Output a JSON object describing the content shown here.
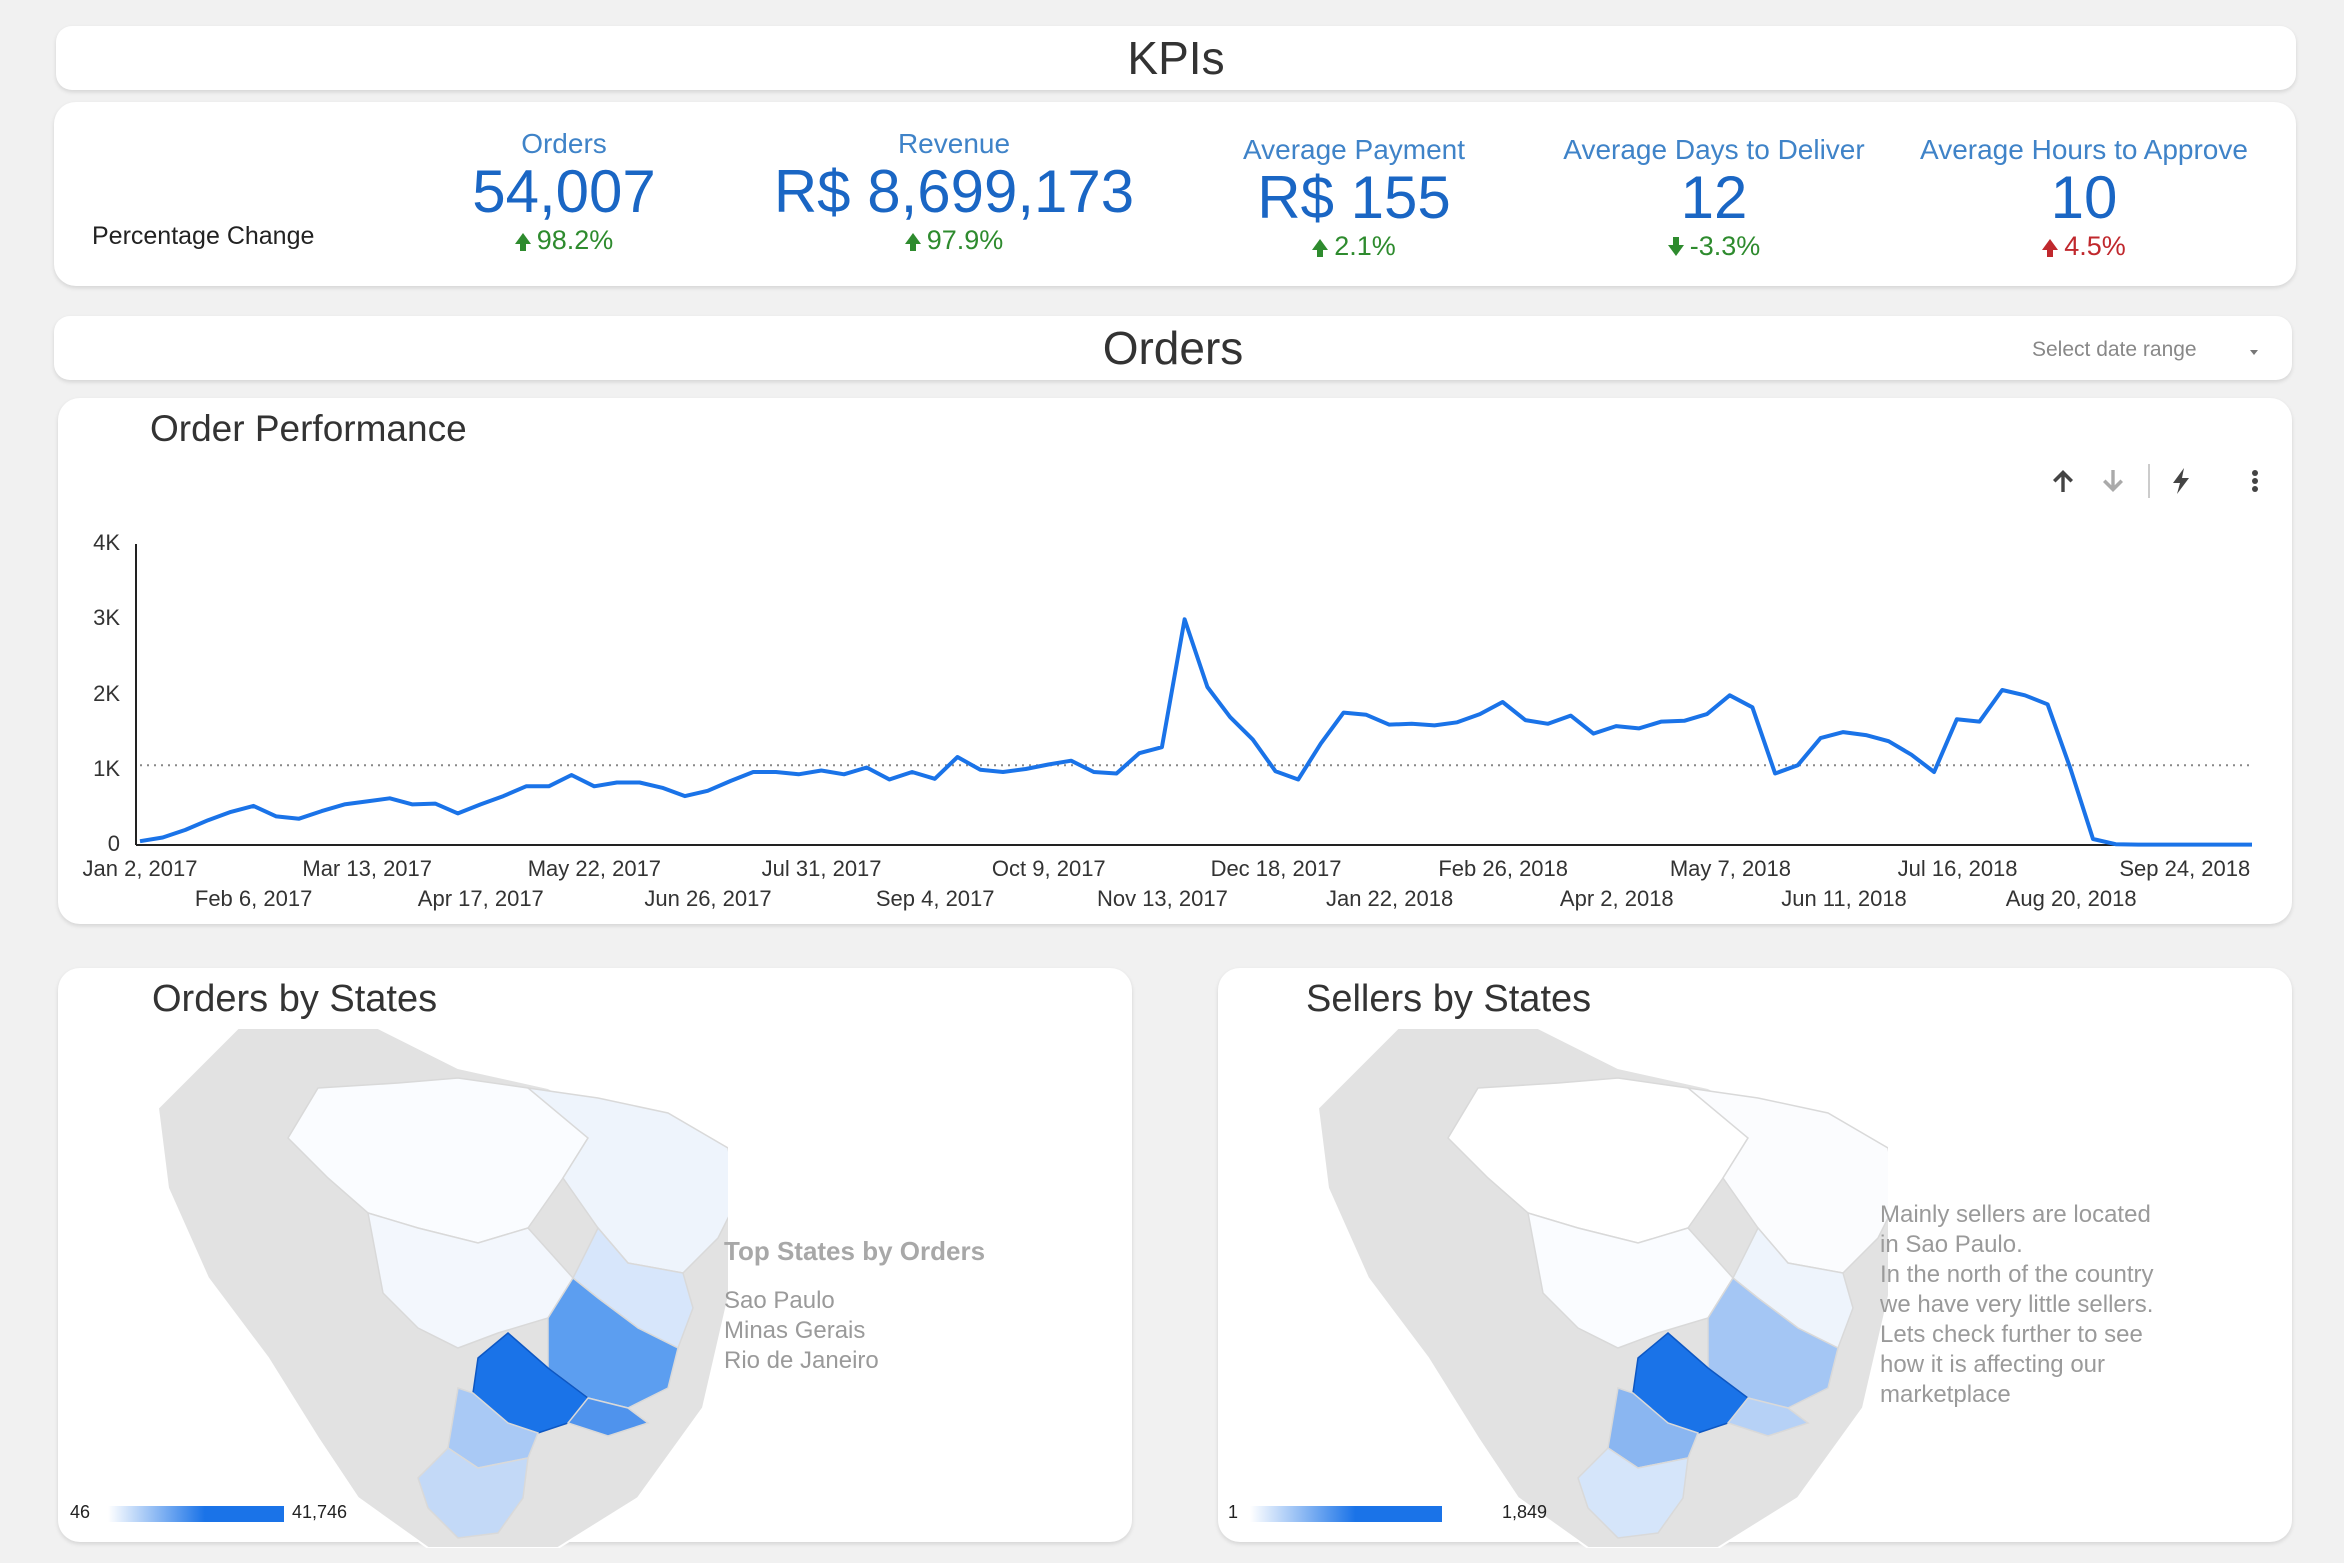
{
  "kpi_section": {
    "title": "KPIs"
  },
  "kpi_row": {
    "row_label": "Percentage Change",
    "items": [
      {
        "label": "Orders",
        "value": "54,007",
        "change": "98.2%"
      },
      {
        "label": "Revenue",
        "value": "R$ 8,699,173",
        "change": "97.9%"
      },
      {
        "label": "Average Payment",
        "value": "R$ 155",
        "change": "2.1%"
      },
      {
        "label": "Average Days to Deliver",
        "value": "12",
        "change": "-3.3%"
      },
      {
        "label": "Average Hours to Approve",
        "value": "10",
        "change": "4.5%"
      }
    ]
  },
  "orders_section": {
    "title": "Orders",
    "date_range_placeholder": "Select date range"
  },
  "colors": {
    "line": "#1a73e8",
    "kpi_value": "#1a66c4",
    "positive": "#2e8b2e",
    "negative": "#c0282d",
    "map_max": "#1a73e8"
  },
  "chart_data": {
    "type": "line",
    "title": "Order Performance",
    "ylim": [
      0,
      4000
    ],
    "y_ticks": [
      "0",
      "1K",
      "2K",
      "3K",
      "4K"
    ],
    "x_ticks_top": [
      "Jan 2, 2017",
      "Mar 13, 2017",
      "May 22, 2017",
      "Jul 31, 2017",
      "Oct 9, 2017",
      "Dec 18, 2017",
      "Feb 26, 2018",
      "May 7, 2018",
      "Jul 16, 2018",
      "Sep 24, 2018"
    ],
    "x_ticks_bottom": [
      "Feb 6, 2017",
      "Apr 17, 2017",
      "Jun 26, 2017",
      "Sep 4, 2017",
      "Nov 13, 2017",
      "Jan 22, 2018",
      "Apr 2, 2018",
      "Jun 11, 2018",
      "Aug 20, 2018"
    ],
    "reference_line": 1060,
    "grid": false,
    "series": [
      {
        "values": [
          50,
          100,
          200,
          330,
          440,
          520,
          380,
          350,
          450,
          540,
          580,
          620,
          540,
          550,
          420,
          540,
          650,
          780,
          780,
          930,
          780,
          830,
          830,
          760,
          650,
          720,
          850,
          970,
          970,
          940,
          990,
          940,
          1030,
          870,
          970,
          880,
          1170,
          1000,
          970,
          1010,
          1070,
          1120,
          970,
          950,
          1220,
          1300,
          3000,
          2100,
          1700,
          1400,
          980,
          870,
          1350,
          1760,
          1730,
          1600,
          1610,
          1590,
          1630,
          1740,
          1900,
          1660,
          1610,
          1720,
          1480,
          1580,
          1550,
          1640,
          1650,
          1740,
          1990,
          1830,
          950,
          1060,
          1420,
          1500,
          1460,
          1380,
          1200,
          970,
          1670,
          1640,
          2060,
          1990,
          1870,
          1020,
          80,
          10,
          5,
          5,
          5,
          5,
          5,
          5
        ]
      }
    ]
  },
  "toolbar": {
    "icons": [
      "arrow-up-icon",
      "arrow-down-icon",
      "bolt-icon",
      "more-vert-icon"
    ]
  },
  "orders_map": {
    "title": "Orders by States",
    "legend_min": "46",
    "legend_max": "41,746",
    "heading": "Top States by Orders",
    "top_states": [
      "Sao Paulo",
      "Minas Gerais",
      "Rio de Janeiro"
    ]
  },
  "sellers_map": {
    "title": "Sellers by States",
    "legend_min": "1",
    "legend_max": "1,849",
    "note_lines": [
      "Mainly sellers are located",
      "in Sao Paulo.",
      "In the north of the country",
      "we have very little sellers.",
      "Lets check further to see",
      "how it is affecting our",
      "marketplace"
    ]
  }
}
